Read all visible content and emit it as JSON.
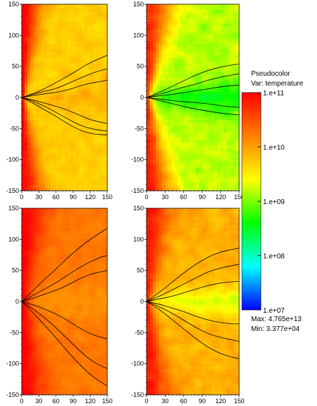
{
  "chart_data": [
    {
      "type": "heatmap",
      "panel": "top-left",
      "variable": "temperature",
      "xlim": [
        0,
        150
      ],
      "ylim": [
        -150,
        150
      ],
      "xticks": [
        0,
        30,
        60,
        90,
        120,
        150
      ],
      "yticks": [
        150,
        100,
        50,
        0,
        -50,
        -100,
        -150
      ],
      "xtick_labels": [
        "0",
        "30",
        "60",
        "90",
        "120",
        "150"
      ],
      "ytick_labels": [
        "150",
        "100",
        "50",
        "0",
        "-50",
        "-100",
        "-150"
      ],
      "field": {
        "axis_log10": 11.0,
        "axis_width": 5,
        "jet_angle_deg": 30,
        "bulk_log10": 9.7,
        "disk_log10": 9.85,
        "disk_halfwidth": 12,
        "noise": 0.25,
        "seed": 3
      },
      "contours": [
        {
          "side": 1,
          "points": [
            [
              0,
              0
            ],
            [
              20,
              6
            ],
            [
              40,
              14
            ],
            [
              60,
              24
            ],
            [
              80,
              34
            ],
            [
              100,
              45
            ],
            [
              120,
              56
            ],
            [
              140,
              64
            ],
            [
              150,
              68
            ]
          ]
        },
        {
          "side": 1,
          "points": [
            [
              0,
              0
            ],
            [
              20,
              5
            ],
            [
              40,
              10
            ],
            [
              60,
              14
            ],
            [
              80,
              22
            ],
            [
              100,
              30
            ],
            [
              120,
              38
            ],
            [
              140,
              44
            ],
            [
              150,
              46
            ]
          ]
        },
        {
          "side": 1,
          "points": [
            [
              0,
              0
            ],
            [
              20,
              3
            ],
            [
              40,
              6
            ],
            [
              60,
              8
            ],
            [
              80,
              12
            ],
            [
              100,
              18
            ],
            [
              120,
              23
            ],
            [
              140,
              26
            ],
            [
              150,
              28
            ]
          ]
        },
        {
          "side": -1,
          "points": [
            [
              0,
              0
            ],
            [
              20,
              -4
            ],
            [
              40,
              -9
            ],
            [
              60,
              -14
            ],
            [
              80,
              -20
            ],
            [
              100,
              -28
            ],
            [
              120,
              -36
            ],
            [
              140,
              -40
            ],
            [
              150,
              -42
            ]
          ]
        },
        {
          "side": -1,
          "points": [
            [
              0,
              0
            ],
            [
              20,
              -6
            ],
            [
              40,
              -14
            ],
            [
              60,
              -24
            ],
            [
              80,
              -34
            ],
            [
              100,
              -44
            ],
            [
              120,
              -50
            ],
            [
              140,
              -53
            ],
            [
              150,
              -54
            ]
          ]
        },
        {
          "side": -1,
          "points": [
            [
              0,
              0
            ],
            [
              20,
              -9
            ],
            [
              40,
              -20
            ],
            [
              60,
              -30
            ],
            [
              80,
              -42
            ],
            [
              100,
              -52
            ],
            [
              120,
              -58
            ],
            [
              140,
              -60
            ],
            [
              150,
              -60
            ]
          ]
        }
      ]
    },
    {
      "type": "heatmap",
      "panel": "top-right",
      "variable": "temperature",
      "xlim": [
        0,
        150
      ],
      "ylim": [
        -150,
        150
      ],
      "xticks": [
        0,
        30,
        60,
        90,
        120,
        150
      ],
      "yticks": [
        150,
        100,
        50,
        0,
        -50,
        -100,
        -150
      ],
      "xtick_labels": [
        "0",
        "30",
        "60",
        "90",
        "120",
        "150"
      ],
      "ytick_labels": [
        "150",
        "100",
        "50",
        "0",
        "-50",
        "-100",
        "-150"
      ],
      "field": {
        "axis_log10": 10.8,
        "axis_width": 6,
        "jet_angle_deg": 35,
        "bulk_log10": 9.2,
        "disk_log10": 8.6,
        "disk_halfwidth": 10,
        "noise": 0.35,
        "seed": 7
      },
      "contours": [
        {
          "side": 1,
          "points": [
            [
              0,
              0
            ],
            [
              25,
              10
            ],
            [
              50,
              22
            ],
            [
              75,
              34
            ],
            [
              100,
              44
            ],
            [
              125,
              50
            ],
            [
              150,
              54
            ]
          ]
        },
        {
          "side": 1,
          "points": [
            [
              0,
              0
            ],
            [
              25,
              6
            ],
            [
              50,
              14
            ],
            [
              75,
              20
            ],
            [
              100,
              28
            ],
            [
              125,
              34
            ],
            [
              150,
              38
            ]
          ]
        },
        {
          "side": 1,
          "points": [
            [
              0,
              0
            ],
            [
              25,
              3
            ],
            [
              50,
              6
            ],
            [
              75,
              10
            ],
            [
              100,
              14
            ],
            [
              125,
              18
            ],
            [
              150,
              20
            ]
          ]
        },
        {
          "side": -1,
          "points": [
            [
              0,
              0
            ],
            [
              25,
              -3
            ],
            [
              50,
              -6
            ],
            [
              75,
              -8
            ],
            [
              100,
              -10
            ],
            [
              125,
              -14
            ],
            [
              150,
              -16
            ]
          ]
        },
        {
          "side": -1,
          "points": [
            [
              0,
              0
            ],
            [
              25,
              -6
            ],
            [
              50,
              -12
            ],
            [
              75,
              -18
            ],
            [
              100,
              -22
            ],
            [
              125,
              -26
            ],
            [
              150,
              -28
            ]
          ]
        }
      ]
    },
    {
      "type": "heatmap",
      "panel": "bottom-left",
      "variable": "temperature",
      "xlim": [
        0,
        150
      ],
      "ylim": [
        -150,
        150
      ],
      "xticks": [
        0,
        30,
        60,
        90,
        120,
        150
      ],
      "yticks": [
        150,
        100,
        50,
        0,
        -50,
        -100,
        -150
      ],
      "xtick_labels": [
        "0",
        "30",
        "60",
        "90",
        "120",
        "150"
      ],
      "ytick_labels": [
        "150",
        "100",
        "50",
        "0",
        "-50",
        "-100",
        "-150"
      ],
      "field": {
        "axis_log10": 11.0,
        "axis_width": 14,
        "jet_angle_deg": 28,
        "bulk_log10": 10.25,
        "disk_log10": 10.1,
        "disk_halfwidth": 14,
        "noise": 0.2,
        "seed": 11
      },
      "contours": [
        {
          "side": 1,
          "points": [
            [
              0,
              0
            ],
            [
              20,
              18
            ],
            [
              40,
              36
            ],
            [
              60,
              52
            ],
            [
              80,
              70
            ],
            [
              100,
              86
            ],
            [
              120,
              100
            ],
            [
              140,
              112
            ],
            [
              150,
              118
            ]
          ]
        },
        {
          "side": 1,
          "points": [
            [
              0,
              0
            ],
            [
              20,
              10
            ],
            [
              40,
              20
            ],
            [
              60,
              30
            ],
            [
              80,
              42
            ],
            [
              100,
              54
            ],
            [
              120,
              64
            ],
            [
              140,
              72
            ],
            [
              150,
              74
            ]
          ]
        },
        {
          "side": 1,
          "points": [
            [
              0,
              0
            ],
            [
              20,
              5
            ],
            [
              40,
              12
            ],
            [
              60,
              18
            ],
            [
              80,
              26
            ],
            [
              100,
              36
            ],
            [
              120,
              44
            ],
            [
              140,
              48
            ],
            [
              150,
              50
            ]
          ]
        },
        {
          "side": -1,
          "points": [
            [
              0,
              0
            ],
            [
              20,
              -5
            ],
            [
              40,
              -12
            ],
            [
              60,
              -20
            ],
            [
              80,
              -30
            ],
            [
              100,
              -42
            ],
            [
              120,
              -52
            ],
            [
              140,
              -58
            ],
            [
              150,
              -60
            ]
          ]
        },
        {
          "side": -1,
          "points": [
            [
              0,
              0
            ],
            [
              20,
              -12
            ],
            [
              40,
              -26
            ],
            [
              60,
              -42
            ],
            [
              80,
              -60
            ],
            [
              100,
              -78
            ],
            [
              120,
              -94
            ],
            [
              140,
              -104
            ],
            [
              150,
              -108
            ]
          ]
        },
        {
          "side": -1,
          "points": [
            [
              0,
              0
            ],
            [
              20,
              -18
            ],
            [
              40,
              -38
            ],
            [
              60,
              -58
            ],
            [
              80,
              -80
            ],
            [
              100,
              -100
            ],
            [
              120,
              -118
            ],
            [
              140,
              -130
            ],
            [
              150,
              -136
            ]
          ]
        }
      ]
    },
    {
      "type": "heatmap",
      "panel": "bottom-right",
      "variable": "temperature",
      "xlim": [
        0,
        150
      ],
      "ylim": [
        -150,
        150
      ],
      "xticks": [
        0,
        30,
        60,
        90,
        120,
        150
      ],
      "yticks": [
        150,
        100,
        50,
        0,
        -50,
        -100,
        -150
      ],
      "xtick_labels": [
        "0",
        "30",
        "60",
        "90",
        "120",
        "150"
      ],
      "ytick_labels": [
        "150",
        "100",
        "50",
        "0",
        "-50",
        "-100",
        "-150"
      ],
      "field": {
        "axis_log10": 10.9,
        "axis_width": 7,
        "jet_angle_deg": 32,
        "bulk_log10": 9.9,
        "disk_log10": 9.3,
        "disk_halfwidth": 9,
        "noise": 0.3,
        "seed": 19
      },
      "contours": [
        {
          "side": 1,
          "points": [
            [
              0,
              0
            ],
            [
              20,
              14
            ],
            [
              40,
              30
            ],
            [
              60,
              46
            ],
            [
              80,
              60
            ],
            [
              100,
              72
            ],
            [
              120,
              80
            ],
            [
              140,
              84
            ],
            [
              150,
              86
            ]
          ]
        },
        {
          "side": 1,
          "points": [
            [
              0,
              0
            ],
            [
              20,
              8
            ],
            [
              40,
              18
            ],
            [
              60,
              28
            ],
            [
              80,
              38
            ],
            [
              100,
              48
            ],
            [
              120,
              54
            ],
            [
              140,
              58
            ],
            [
              150,
              60
            ]
          ]
        },
        {
          "side": 1,
          "points": [
            [
              0,
              0
            ],
            [
              20,
              4
            ],
            [
              40,
              8
            ],
            [
              60,
              14
            ],
            [
              80,
              20
            ],
            [
              100,
              26
            ],
            [
              120,
              30
            ],
            [
              140,
              32
            ],
            [
              150,
              32
            ]
          ]
        },
        {
          "side": -1,
          "points": [
            [
              0,
              0
            ],
            [
              20,
              -4
            ],
            [
              40,
              -10
            ],
            [
              60,
              -16
            ],
            [
              80,
              -24
            ],
            [
              100,
              -30
            ],
            [
              120,
              -34
            ],
            [
              140,
              -36
            ],
            [
              150,
              -36
            ]
          ]
        },
        {
          "side": -1,
          "points": [
            [
              0,
              0
            ],
            [
              20,
              -8
            ],
            [
              40,
              -18
            ],
            [
              60,
              -30
            ],
            [
              80,
              -42
            ],
            [
              100,
              -52
            ],
            [
              120,
              -58
            ],
            [
              140,
              -62
            ],
            [
              150,
              -64
            ]
          ]
        },
        {
          "side": -1,
          "points": [
            [
              0,
              0
            ],
            [
              20,
              -12
            ],
            [
              40,
              -28
            ],
            [
              60,
              -44
            ],
            [
              80,
              -60
            ],
            [
              100,
              -74
            ],
            [
              120,
              -84
            ],
            [
              140,
              -90
            ],
            [
              150,
              -92
            ]
          ]
        }
      ]
    }
  ],
  "legend": {
    "title": "Pseudocolor",
    "variable_line": "Var: temperature",
    "ticks": [
      {
        "label": "1.e+11",
        "value": 11
      },
      {
        "label": "1.e+10",
        "value": 10
      },
      {
        "label": "1.e+09",
        "value": 9
      },
      {
        "label": "1.e+08",
        "value": 8
      },
      {
        "label": "1.e+07",
        "value": 7
      }
    ],
    "range_log10": [
      7,
      11
    ],
    "colormap": [
      "#0000ff",
      "#00ffff",
      "#00ff00",
      "#ffff00",
      "#ff8000",
      "#ff0000"
    ],
    "max_text": "Max:  4.765e+13",
    "min_text": "Min:  3.377e+04"
  },
  "colors": {
    "contour": "#000000",
    "background": "#ffffff"
  }
}
